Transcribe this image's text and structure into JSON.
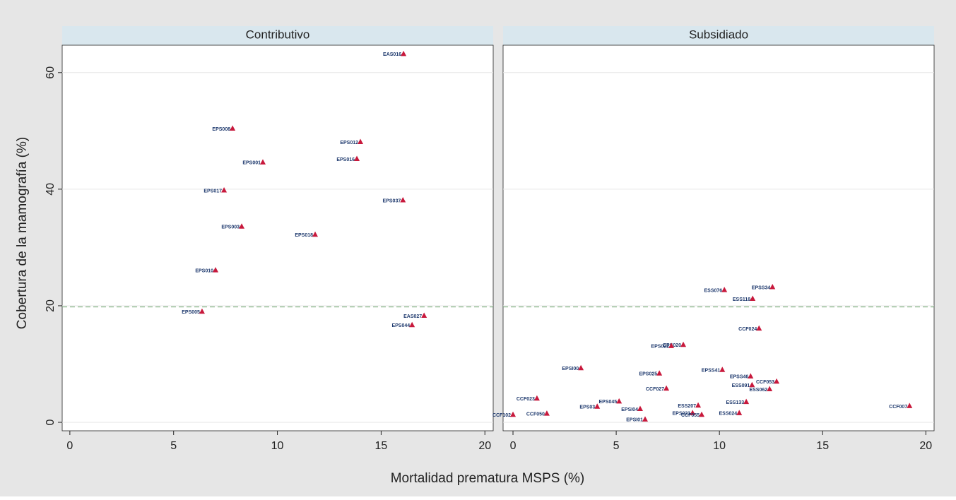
{
  "chart_data": {
    "type": "scatter",
    "xlabel": "Mortalidad prematura MSPS (%)",
    "ylabel": "Cobertura de la mamografía (%)",
    "ylim": [
      -1.45,
      64.7
    ],
    "yticks": [
      0,
      20,
      40,
      60
    ],
    "yline": 19.8,
    "yline_color": "#6aa36a",
    "grid": true,
    "marker_color": "#c8193c",
    "label_color": "#1f3a6e",
    "panels": [
      {
        "title": "Contributivo",
        "xlim": [
          -0.37,
          20.4
        ],
        "xticks": [
          0,
          5,
          10,
          15,
          20
        ],
        "labels": [
          "EAS016",
          "EPS008",
          "EPS012",
          "EPS016",
          "EPS001",
          "EPS017",
          "EPS037",
          "EPS003",
          "EPS018",
          "EPS010",
          "EPS005",
          "EAS027",
          "EPS044"
        ],
        "x": [
          16.08,
          7.84,
          14.0,
          13.83,
          9.3,
          7.43,
          16.05,
          8.28,
          11.82,
          7.02,
          6.37,
          17.07,
          16.49
        ],
        "y": [
          63.2,
          50.4,
          48.1,
          45.2,
          44.6,
          39.8,
          38.1,
          33.6,
          32.2,
          26.1,
          19.0,
          18.3,
          16.7
        ]
      },
      {
        "title": "Subsidiado",
        "xlim": [
          -0.48,
          20.4
        ],
        "xticks": [
          0,
          5,
          10,
          15,
          20
        ],
        "labels": [
          "EPSS34",
          "ESS076",
          "ESS118",
          "CCF024",
          "EPS020",
          "EPS022",
          "EPSI00",
          "EPSS41",
          "EPS025",
          "EPSS46",
          "CCF053",
          "ESS091",
          "ESS062",
          "CCF027",
          "CCF023",
          "EPS045",
          "ESS133",
          "EPS03",
          "ESS207",
          "CCF007",
          "EPSI04",
          "CCF102",
          "CCF050",
          "EPS023",
          "CCF055",
          "ESS024",
          "EPSI01"
        ],
        "x": [
          12.57,
          10.24,
          11.61,
          11.92,
          8.25,
          7.67,
          3.29,
          10.14,
          7.09,
          11.51,
          12.77,
          11.58,
          12.43,
          7.43,
          1.16,
          5.14,
          11.3,
          4.08,
          8.97,
          19.21,
          6.16,
          0.0,
          1.64,
          8.7,
          9.14,
          10.96,
          6.4
        ],
        "y": [
          23.2,
          22.7,
          21.2,
          16.1,
          13.3,
          13.1,
          9.3,
          9.0,
          8.4,
          7.9,
          7.0,
          6.4,
          5.7,
          5.8,
          4.1,
          3.6,
          3.5,
          2.7,
          2.9,
          2.8,
          2.3,
          1.3,
          1.5,
          1.6,
          1.3,
          1.6,
          0.5
        ]
      }
    ]
  }
}
